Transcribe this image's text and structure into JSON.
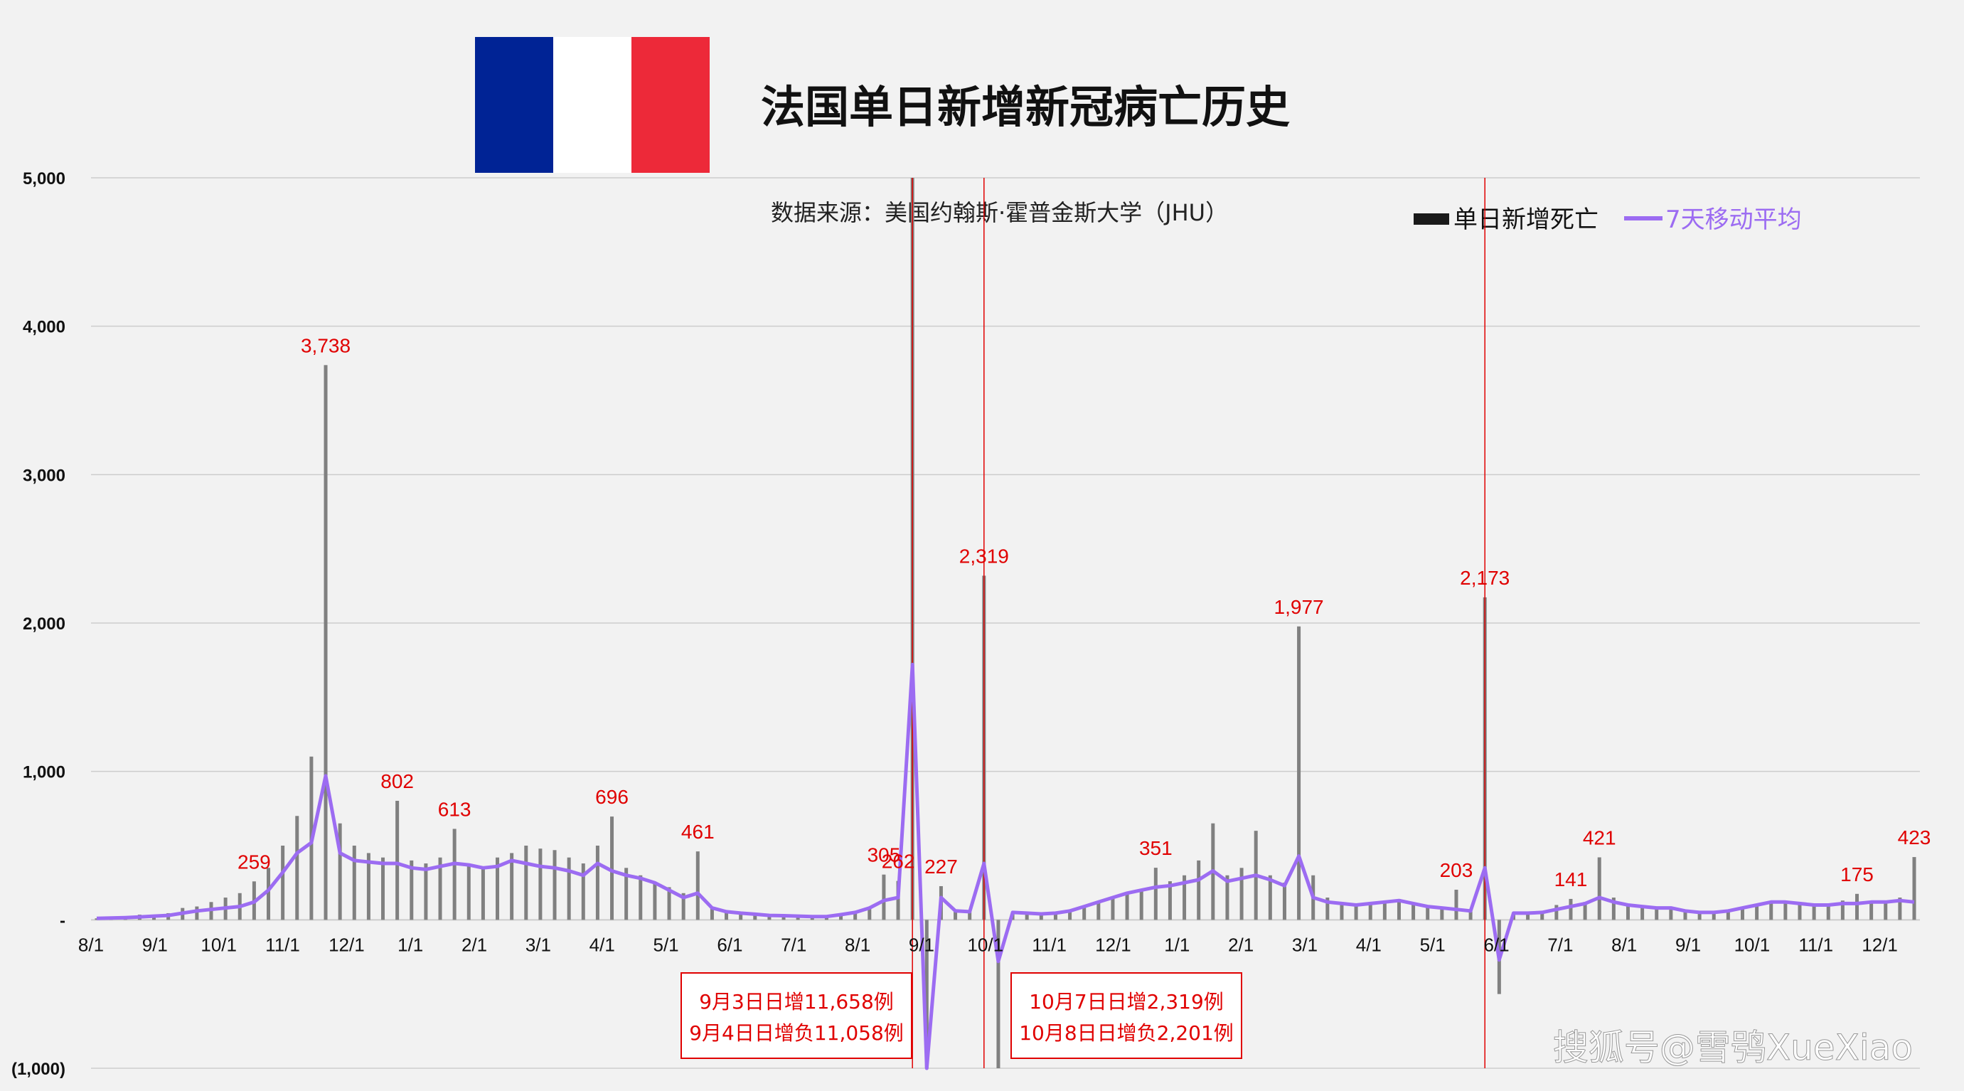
{
  "header": {
    "title": "法国单日新增新冠病亡历史",
    "source": "数据来源：美国约翰斯·霍普金斯大学（JHU）",
    "flag_colors": [
      "#002395",
      "#ffffff",
      "#ed2939"
    ]
  },
  "watermark": "搜狐号@雪鸮XueXiao",
  "notes": [
    {
      "line1": "9月3日日增11,658例",
      "line2": "9月4日日增负11,058例"
    },
    {
      "line1": "10月7日日增2,319例",
      "line2": "10月8日日增负2,201例"
    }
  ],
  "colors": {
    "bars": "#808080",
    "bar_legend": "#1a1a1a",
    "avg_line": "#9c6cf2",
    "labels": "#e00000",
    "grid": "#cccccc"
  },
  "chart_data": {
    "type": "bar",
    "xlabel": "",
    "ylabel": "",
    "ylim": [
      -1000,
      5000
    ],
    "y_ticks": [
      5000,
      4000,
      3000,
      2000,
      1000,
      0,
      -1000
    ],
    "y_tick_labels": [
      "5,000",
      "4,000",
      "3,000",
      "2,000",
      "1,000",
      "-",
      "(1,000)"
    ],
    "x_tick_labels": [
      "8/1",
      "9/1",
      "10/1",
      "11/1",
      "12/1",
      "1/1",
      "2/1",
      "3/1",
      "4/1",
      "5/1",
      "6/1",
      "7/1",
      "8/1",
      "9/1",
      "10/1",
      "11/1",
      "12/1",
      "1/1",
      "2/1",
      "3/1",
      "4/1",
      "5/1",
      "6/1",
      "7/1",
      "8/1",
      "9/1",
      "10/1",
      "11/1",
      "12/1"
    ],
    "legend": [
      "单日新增死亡",
      "7天移动平均"
    ],
    "series": [
      {
        "name": "单日新增死亡",
        "values_sampled_every_7_days": [
          10,
          15,
          20,
          35,
          30,
          45,
          80,
          90,
          120,
          150,
          180,
          259,
          350,
          500,
          700,
          1100,
          3738,
          650,
          500,
          450,
          420,
          802,
          400,
          380,
          420,
          613,
          380,
          350,
          420,
          450,
          500,
          480,
          470,
          420,
          380,
          500,
          696,
          350,
          300,
          250,
          220,
          180,
          461,
          80,
          60,
          50,
          40,
          30,
          30,
          25,
          20,
          20,
          35,
          50,
          80,
          305,
          262,
          11658,
          -11058,
          227,
          70,
          60,
          2319,
          -2201,
          50,
          45,
          40,
          45,
          60,
          90,
          120,
          150,
          180,
          200,
          351,
          260,
          300,
          400,
          650,
          300,
          350,
          600,
          300,
          250,
          1977,
          300,
          150,
          120,
          110,
          120,
          130,
          140,
          110,
          100,
          90,
          203,
          70,
          2173,
          -500,
          50,
          45,
          60,
          100,
          141,
          120,
          421,
          150,
          100,
          90,
          80,
          80,
          60,
          50,
          50,
          60,
          80,
          100,
          120,
          130,
          120,
          110,
          100,
          130,
          175,
          120,
          130,
          150,
          423
        ]
      },
      {
        "name": "7天移动平均",
        "values_sampled_every_7_days": [
          10,
          12,
          15,
          20,
          25,
          30,
          45,
          60,
          70,
          80,
          90,
          120,
          200,
          320,
          450,
          520,
          970,
          450,
          400,
          390,
          380,
          380,
          350,
          340,
          360,
          380,
          370,
          350,
          360,
          400,
          380,
          360,
          350,
          330,
          300,
          380,
          330,
          300,
          280,
          250,
          200,
          150,
          180,
          80,
          55,
          45,
          38,
          30,
          28,
          25,
          22,
          22,
          35,
          50,
          80,
          130,
          150,
          1720,
          -1000,
          150,
          60,
          55,
          380,
          -280,
          50,
          45,
          40,
          45,
          60,
          90,
          120,
          150,
          180,
          200,
          220,
          230,
          250,
          270,
          330,
          260,
          280,
          300,
          270,
          230,
          430,
          150,
          120,
          110,
          100,
          110,
          120,
          130,
          110,
          90,
          80,
          70,
          60,
          350,
          -270,
          45,
          45,
          50,
          70,
          90,
          110,
          150,
          120,
          100,
          90,
          80,
          80,
          60,
          50,
          50,
          60,
          80,
          100,
          120,
          120,
          110,
          100,
          100,
          110,
          110,
          120,
          120,
          130,
          120
        ]
      }
    ],
    "data_labels": [
      {
        "x_week": 11,
        "value": 259,
        "text": "259"
      },
      {
        "x_week": 16,
        "value": 3738,
        "text": "3,738"
      },
      {
        "x_week": 21,
        "value": 802,
        "text": "802"
      },
      {
        "x_week": 25,
        "value": 613,
        "text": "613"
      },
      {
        "x_week": 36,
        "value": 696,
        "text": "696"
      },
      {
        "x_week": 42,
        "value": 461,
        "text": "461"
      },
      {
        "x_week": 55,
        "value": 305,
        "text": "305"
      },
      {
        "x_week": 56,
        "value": 262,
        "text": "262"
      },
      {
        "x_week": 59,
        "value": 227,
        "text": "227"
      },
      {
        "x_week": 62,
        "value": 2319,
        "text": "2,319"
      },
      {
        "x_week": 74,
        "value": 351,
        "text": "351"
      },
      {
        "x_week": 84,
        "value": 1977,
        "text": "1,977"
      },
      {
        "x_week": 95,
        "value": 203,
        "text": "203"
      },
      {
        "x_week": 97,
        "value": 2173,
        "text": "2,173"
      },
      {
        "x_week": 103,
        "value": 141,
        "text": "141"
      },
      {
        "x_week": 105,
        "value": 421,
        "text": "421"
      },
      {
        "x_week": 123,
        "value": 175,
        "text": "175"
      },
      {
        "x_week": 127,
        "value": 423,
        "text": "423"
      }
    ]
  }
}
